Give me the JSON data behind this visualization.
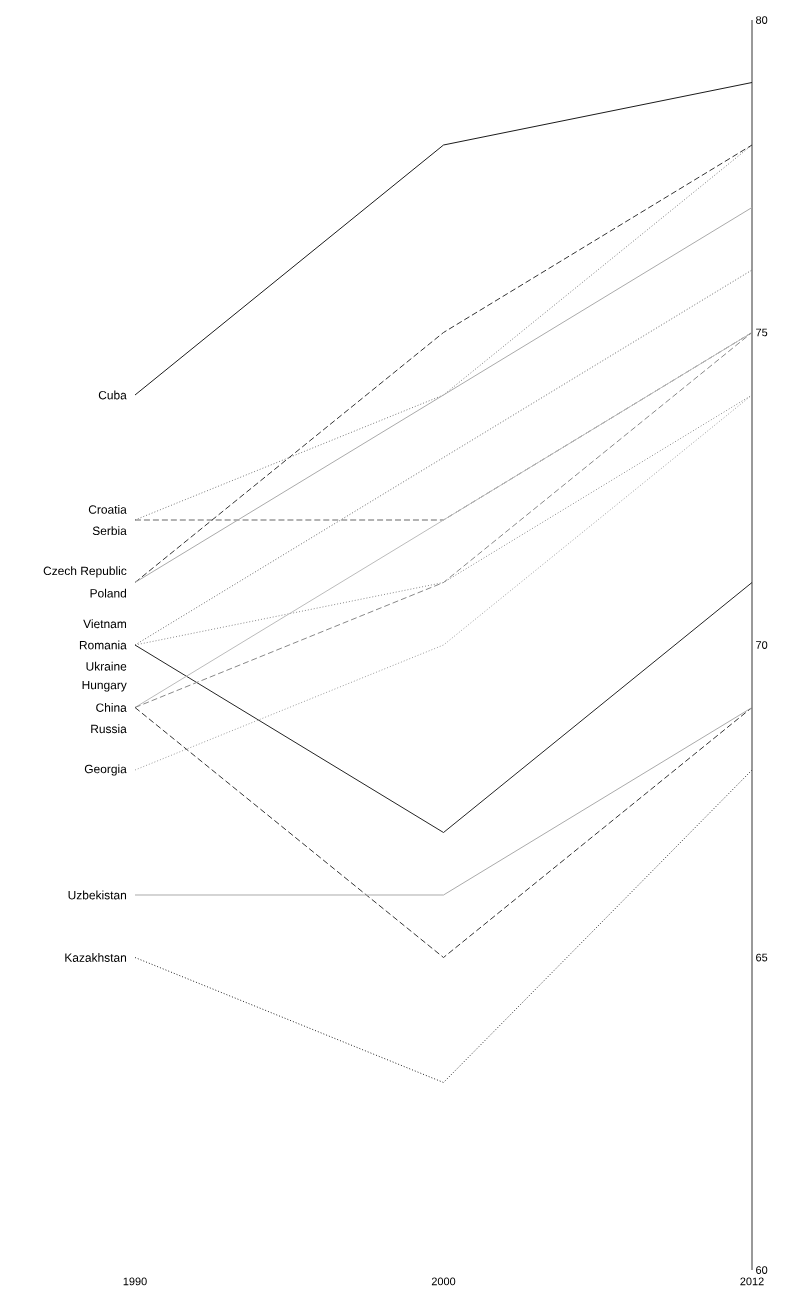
{
  "chart_data": {
    "type": "line",
    "categories": [
      "1990",
      "2000",
      "2012"
    ],
    "ylim": [
      60,
      80
    ],
    "yticks": [
      60,
      65,
      70,
      75,
      80
    ],
    "grid": false,
    "legend": false,
    "marker": "none",
    "series": [
      {
        "name": "Cuba",
        "color": "#1a1a1a",
        "line_style": "solid",
        "values": [
          74,
          78,
          79
        ]
      },
      {
        "name": "Croatia",
        "color": "#777777",
        "line_style": "dotted",
        "values": [
          72,
          74,
          78
        ]
      },
      {
        "name": "Serbia",
        "color": "#666666",
        "line_style": "dashed",
        "values": [
          72,
          72,
          75
        ]
      },
      {
        "name": "Czech Republic",
        "color": "#333333",
        "line_style": "dashed",
        "values": [
          71,
          75,
          78
        ]
      },
      {
        "name": "Poland",
        "color": "#aaaaaa",
        "line_style": "solid",
        "values": [
          71,
          74,
          77
        ]
      },
      {
        "name": "Vietnam",
        "color": "#666666",
        "line_style": "dotted",
        "values": [
          70,
          73,
          76
        ]
      },
      {
        "name": "Romania",
        "color": "#888888",
        "line_style": "dotted",
        "values": [
          70,
          71,
          74
        ]
      },
      {
        "name": "Ukraine",
        "color": "#222222",
        "line_style": "solid",
        "values": [
          70,
          67,
          71
        ]
      },
      {
        "name": "Hungary",
        "color": "#bbbbbb",
        "line_style": "solid",
        "values": [
          69,
          72,
          75
        ]
      },
      {
        "name": "China",
        "color": "#888888",
        "line_style": "dashed",
        "values": [
          69,
          71,
          75
        ]
      },
      {
        "name": "Russia",
        "color": "#333333",
        "line_style": "dashed",
        "values": [
          69,
          65,
          69
        ]
      },
      {
        "name": "Georgia",
        "color": "#999999",
        "line_style": "dotted",
        "values": [
          68,
          70,
          74
        ]
      },
      {
        "name": "Uzbekistan",
        "color": "#aaaaaa",
        "line_style": "solid",
        "values": [
          66,
          66,
          69
        ]
      },
      {
        "name": "Kazakhstan",
        "color": "#222222",
        "line_style": "dotted",
        "values": [
          65,
          63,
          68
        ]
      }
    ]
  }
}
